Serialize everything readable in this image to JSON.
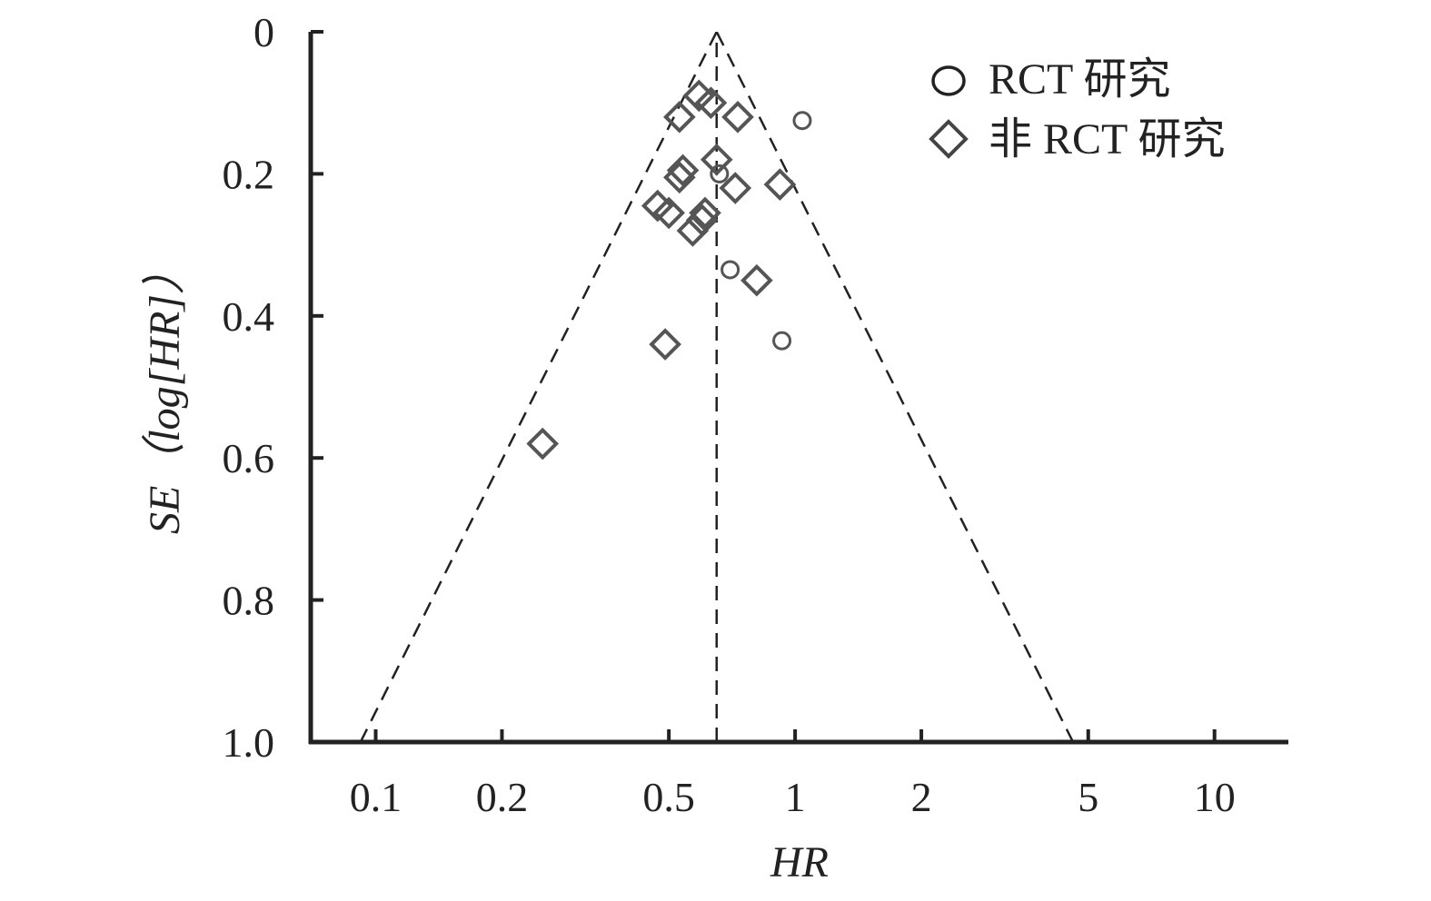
{
  "chart_data": {
    "type": "scatter",
    "subtype": "funnel-plot",
    "xlabel": "HR",
    "ylabel": "SE（log[HR]）",
    "x_scale": "log",
    "xlim": [
      0.07,
      15
    ],
    "ylim": [
      0,
      1.0
    ],
    "y_inverted": true,
    "x_ticks": [
      0.1,
      0.2,
      0.5,
      1,
      2,
      5,
      10
    ],
    "x_tick_labels": [
      "0.1",
      "0.2",
      "0.5",
      "1",
      "2",
      "5",
      "10"
    ],
    "y_ticks": [
      0,
      0.2,
      0.4,
      0.6,
      0.8,
      1.0
    ],
    "y_tick_labels": [
      "0",
      "0.2",
      "0.4",
      "0.6",
      "0.8",
      "1.0"
    ],
    "pooled_hr": 0.65,
    "funnel_base": [
      0.092,
      4.6
    ],
    "grid": false,
    "legend_position": "top-right",
    "series": [
      {
        "name": "RCT 研究",
        "marker": "circle",
        "points": [
          {
            "x": 1.04,
            "y": 0.125
          },
          {
            "x": 0.66,
            "y": 0.2
          },
          {
            "x": 0.7,
            "y": 0.335
          },
          {
            "x": 0.93,
            "y": 0.435
          }
        ]
      },
      {
        "name": "非 RCT 研究",
        "marker": "diamond",
        "points": [
          {
            "x": 0.59,
            "y": 0.09
          },
          {
            "x": 0.63,
            "y": 0.1
          },
          {
            "x": 0.53,
            "y": 0.12
          },
          {
            "x": 0.73,
            "y": 0.12
          },
          {
            "x": 0.65,
            "y": 0.18
          },
          {
            "x": 0.54,
            "y": 0.195
          },
          {
            "x": 0.53,
            "y": 0.205
          },
          {
            "x": 0.92,
            "y": 0.215
          },
          {
            "x": 0.72,
            "y": 0.22
          },
          {
            "x": 0.47,
            "y": 0.245
          },
          {
            "x": 0.5,
            "y": 0.255
          },
          {
            "x": 0.61,
            "y": 0.255
          },
          {
            "x": 0.6,
            "y": 0.265
          },
          {
            "x": 0.57,
            "y": 0.28
          },
          {
            "x": 0.81,
            "y": 0.35
          },
          {
            "x": 0.49,
            "y": 0.44
          },
          {
            "x": 0.25,
            "y": 0.58
          }
        ]
      }
    ]
  },
  "colors": {
    "axis": "#222222",
    "marker": "#555555",
    "funnel": "#222222"
  }
}
